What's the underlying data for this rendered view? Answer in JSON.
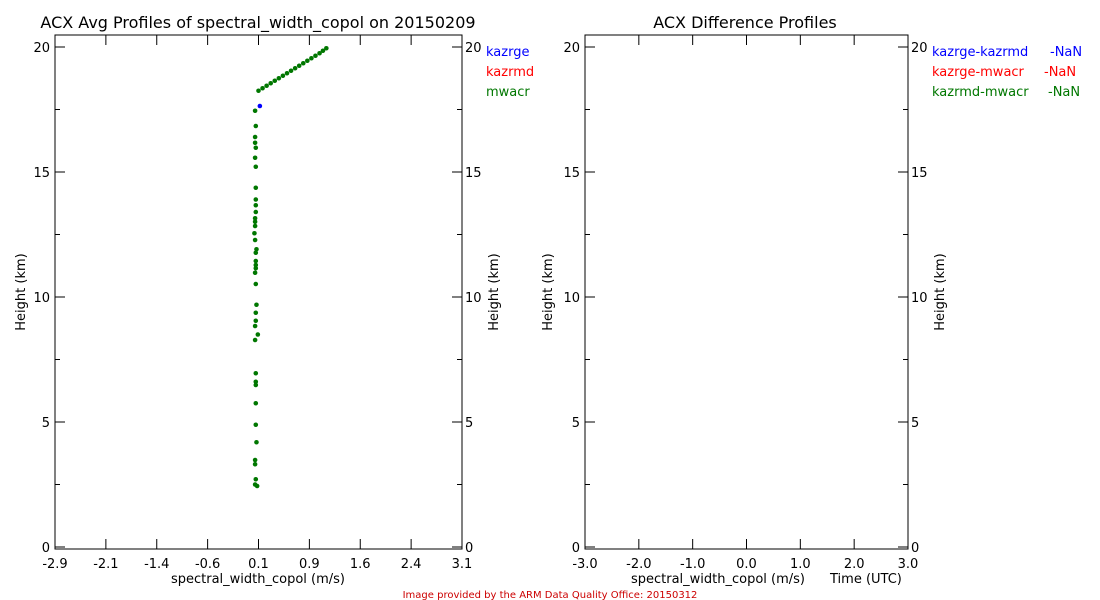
{
  "colors": {
    "kazrge": "#0000ff",
    "kazrmd": "#ff0000",
    "mwacr": "#007700",
    "credit": "#cc0000"
  },
  "credit": "Image provided by the ARM Data Quality Office: 20150312",
  "chart_data": [
    {
      "type": "scatter",
      "title": "ACX Avg Profiles of spectral_width_copol on 20150209",
      "xlabel": "spectral_width_copol (m/s)",
      "ylabel": "Height (km)",
      "ylabel_right": "Height (km)",
      "xlim": [
        -2.9,
        3.1
      ],
      "ylim": [
        0,
        20
      ],
      "xticks": [
        "-2.9",
        "-2.1",
        "-1.4",
        "-0.6",
        "0.1",
        "0.9",
        "1.6",
        "2.4",
        "3.1"
      ],
      "yticks": [
        "0",
        "5",
        "10",
        "15",
        "20"
      ],
      "legend": [
        "kazrge",
        "kazrmd",
        "mwacr"
      ],
      "legend_placement": "right-outside",
      "series": [
        {
          "name": "kazrge",
          "color_key": "kazrge",
          "points": [
            [
              0.12,
              17.64
            ]
          ]
        },
        {
          "name": "kazrmd",
          "color_key": "kazrmd",
          "points": []
        },
        {
          "name": "mwacr",
          "color_key": "mwacr",
          "points": [
            [
              0.1,
              18.25
            ],
            [
              0.16,
              18.35
            ],
            [
              0.22,
              18.45
            ],
            [
              0.28,
              18.55
            ],
            [
              0.34,
              18.65
            ],
            [
              0.4,
              18.75
            ],
            [
              0.46,
              18.85
            ],
            [
              0.52,
              18.95
            ],
            [
              0.58,
              19.05
            ],
            [
              0.64,
              19.15
            ],
            [
              0.7,
              19.25
            ],
            [
              0.76,
              19.35
            ],
            [
              0.82,
              19.45
            ],
            [
              0.88,
              19.55
            ],
            [
              0.94,
              19.65
            ],
            [
              1.0,
              19.75
            ],
            [
              1.05,
              19.85
            ],
            [
              1.1,
              19.95
            ],
            [
              0.05,
              17.45
            ],
            [
              0.06,
              16.84
            ],
            [
              0.05,
              16.4
            ],
            [
              0.05,
              16.17
            ],
            [
              0.06,
              15.97
            ],
            [
              0.05,
              15.57
            ],
            [
              0.06,
              15.21
            ],
            [
              0.06,
              14.37
            ],
            [
              0.06,
              13.9
            ],
            [
              0.06,
              13.67
            ],
            [
              0.06,
              13.4
            ],
            [
              0.05,
              13.15
            ],
            [
              0.05,
              13.01
            ],
            [
              0.05,
              12.84
            ],
            [
              0.04,
              12.55
            ],
            [
              0.05,
              12.28
            ],
            [
              0.07,
              11.91
            ],
            [
              0.06,
              11.77
            ],
            [
              0.06,
              11.44
            ],
            [
              0.06,
              11.28
            ],
            [
              0.06,
              11.15
            ],
            [
              0.05,
              10.97
            ],
            [
              0.06,
              10.52
            ],
            [
              0.07,
              9.69
            ],
            [
              0.06,
              9.37
            ],
            [
              0.06,
              9.05
            ],
            [
              0.05,
              8.84
            ],
            [
              0.09,
              8.5
            ],
            [
              0.05,
              8.28
            ],
            [
              0.06,
              6.95
            ],
            [
              0.06,
              6.61
            ],
            [
              0.06,
              6.48
            ],
            [
              0.06,
              5.75
            ],
            [
              0.06,
              4.89
            ],
            [
              0.07,
              4.19
            ],
            [
              0.05,
              3.48
            ],
            [
              0.05,
              3.31
            ],
            [
              0.06,
              2.71
            ],
            [
              0.05,
              2.5
            ],
            [
              0.08,
              2.44
            ]
          ]
        }
      ]
    },
    {
      "type": "scatter",
      "title": "ACX Difference Profiles",
      "xlabel": "spectral_width_copol (m/s)",
      "xlabel_overlap": "Time (UTC)",
      "ylabel": "Height (km)",
      "ylabel_right": "Height (km)",
      "xlim": [
        -3.0,
        3.0
      ],
      "ylim": [
        0,
        20
      ],
      "xticks": [
        "-3.0",
        "-2.0",
        "-1.0",
        "0.0",
        "1.0",
        "2.0",
        "3.0"
      ],
      "yticks": [
        "0",
        "5",
        "10",
        "15",
        "20"
      ],
      "legend": [
        {
          "name": "kazrge-kazrmd",
          "value": "-NaN",
          "color_key": "kazrge"
        },
        {
          "name": "kazrge-mwacr",
          "value": "-NaN",
          "color_key": "kazrmd"
        },
        {
          "name": "kazrmd-mwacr",
          "value": "-NaN",
          "color_key": "mwacr"
        }
      ],
      "legend_placement": "top-right",
      "series": []
    }
  ]
}
